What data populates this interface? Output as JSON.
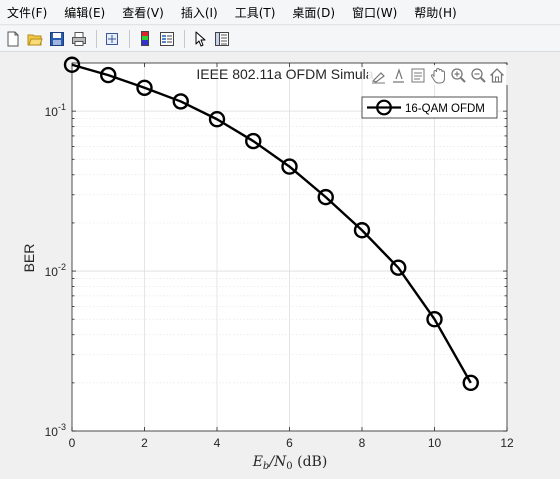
{
  "menubar": {
    "items": [
      "文件(F)",
      "编辑(E)",
      "查看(V)",
      "插入(I)",
      "工具(T)",
      "桌面(D)",
      "窗口(W)",
      "帮助(H)"
    ]
  },
  "toolbar": {
    "buttons": [
      "new-figure",
      "open-file",
      "save",
      "print",
      "link-plot",
      "insert-colorbar",
      "insert-legend",
      "edit-plot",
      "property-inspector"
    ]
  },
  "axes_toolbar": {
    "buttons": [
      "brush",
      "data-tips",
      "edit-axes",
      "pan",
      "zoom-in",
      "zoom-out",
      "restore-view"
    ]
  },
  "colors": {
    "line": "#000000",
    "grid": "#dcdcdc",
    "background": "#f0f0f0",
    "axes_bg": "#ffffff"
  },
  "chart_data": {
    "type": "line",
    "title": "IEEE 802.11a OFDM Simula",
    "xlabel_main": "E",
    "xlabel_sub1": "b",
    "xlabel_mid": "/N",
    "xlabel_sub2": "0",
    "xlabel_unit": "(dB)",
    "ylabel": "BER",
    "xlim": [
      0,
      12
    ],
    "ylim": [
      0.001,
      0.2
    ],
    "yscale": "log",
    "xticks": [
      "0",
      "2",
      "4",
      "6",
      "8",
      "10",
      "12"
    ],
    "yticks": [
      {
        "base": "10",
        "exp": "-1"
      },
      {
        "base": "10",
        "exp": "-2"
      },
      {
        "base": "10",
        "exp": "-3"
      }
    ],
    "grid": true,
    "legend_position": "top-right",
    "series": [
      {
        "name": "16-QAM OFDM",
        "marker": "circle",
        "x": [
          0,
          1,
          2,
          3,
          4,
          5,
          6,
          7,
          8,
          9,
          10,
          11
        ],
        "y": [
          0.195,
          0.168,
          0.14,
          0.115,
          0.089,
          0.065,
          0.045,
          0.029,
          0.018,
          0.0105,
          0.005,
          0.002
        ]
      }
    ]
  }
}
